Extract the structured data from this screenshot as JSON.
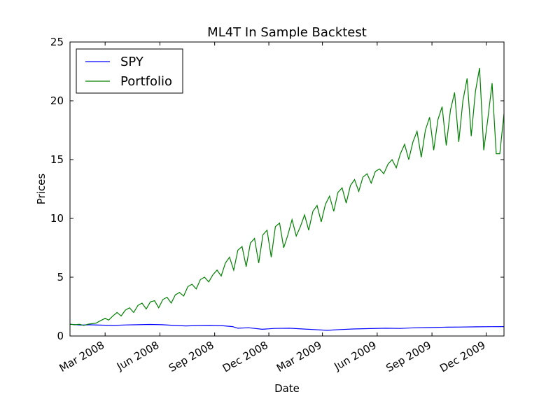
{
  "chart_data": {
    "type": "line",
    "title": "ML4T In Sample Backtest",
    "xlabel": "Date",
    "ylabel": "Prices",
    "ylim": [
      0,
      25
    ],
    "xlim": [
      "2008-01-02",
      "2009-12-31"
    ],
    "yticks": [
      "0",
      "5",
      "10",
      "15",
      "20",
      "25"
    ],
    "xticks": [
      {
        "date": "2008-03-01",
        "label": "Mar 2008"
      },
      {
        "date": "2008-06-01",
        "label": "Jun 2008"
      },
      {
        "date": "2008-09-01",
        "label": "Sep 2008"
      },
      {
        "date": "2008-12-01",
        "label": "Dec 2008"
      },
      {
        "date": "2009-03-01",
        "label": "Mar 2009"
      },
      {
        "date": "2009-06-01",
        "label": "Jun 2009"
      },
      {
        "date": "2009-09-01",
        "label": "Sep 2009"
      },
      {
        "date": "2009-12-01",
        "label": "Dec 2009"
      }
    ],
    "grid": false,
    "legend": "top-left",
    "series": [
      {
        "name": "SPY",
        "color": "#0000ff",
        "points": [
          [
            "2008-01-02",
            1.0
          ],
          [
            "2008-01-20",
            0.93
          ],
          [
            "2008-02-05",
            0.95
          ],
          [
            "2008-02-25",
            0.92
          ],
          [
            "2008-03-15",
            0.9
          ],
          [
            "2008-04-05",
            0.94
          ],
          [
            "2008-04-25",
            0.96
          ],
          [
            "2008-05-15",
            0.98
          ],
          [
            "2008-06-05",
            0.96
          ],
          [
            "2008-06-25",
            0.9
          ],
          [
            "2008-07-15",
            0.86
          ],
          [
            "2008-08-05",
            0.89
          ],
          [
            "2008-08-25",
            0.9
          ],
          [
            "2008-09-15",
            0.87
          ],
          [
            "2008-10-01",
            0.8
          ],
          [
            "2008-10-10",
            0.66
          ],
          [
            "2008-10-28",
            0.7
          ],
          [
            "2008-11-20",
            0.57
          ],
          [
            "2008-12-10",
            0.64
          ],
          [
            "2009-01-05",
            0.66
          ],
          [
            "2009-01-25",
            0.6
          ],
          [
            "2009-02-15",
            0.55
          ],
          [
            "2009-03-09",
            0.48
          ],
          [
            "2009-03-30",
            0.55
          ],
          [
            "2009-04-25",
            0.6
          ],
          [
            "2009-05-20",
            0.63
          ],
          [
            "2009-06-15",
            0.66
          ],
          [
            "2009-07-10",
            0.64
          ],
          [
            "2009-08-05",
            0.7
          ],
          [
            "2009-08-30",
            0.72
          ],
          [
            "2009-09-25",
            0.75
          ],
          [
            "2009-10-20",
            0.76
          ],
          [
            "2009-11-15",
            0.78
          ],
          [
            "2009-12-10",
            0.79
          ],
          [
            "2009-12-31",
            0.8
          ]
        ]
      },
      {
        "name": "Portfolio",
        "color": "#008000",
        "points": [
          [
            "2008-01-02",
            1.0
          ],
          [
            "2008-01-10",
            0.95
          ],
          [
            "2008-01-18",
            1.0
          ],
          [
            "2008-01-25",
            0.9
          ],
          [
            "2008-02-01",
            1.0
          ],
          [
            "2008-02-08",
            1.05
          ],
          [
            "2008-02-15",
            1.1
          ],
          [
            "2008-02-22",
            1.3
          ],
          [
            "2008-03-01",
            1.5
          ],
          [
            "2008-03-07",
            1.35
          ],
          [
            "2008-03-14",
            1.7
          ],
          [
            "2008-03-21",
            2.0
          ],
          [
            "2008-03-28",
            1.7
          ],
          [
            "2008-04-04",
            2.2
          ],
          [
            "2008-04-11",
            2.4
          ],
          [
            "2008-04-18",
            2.0
          ],
          [
            "2008-04-25",
            2.6
          ],
          [
            "2008-05-02",
            2.8
          ],
          [
            "2008-05-09",
            2.3
          ],
          [
            "2008-05-16",
            2.9
          ],
          [
            "2008-05-23",
            3.0
          ],
          [
            "2008-05-30",
            2.4
          ],
          [
            "2008-06-06",
            3.1
          ],
          [
            "2008-06-13",
            3.3
          ],
          [
            "2008-06-20",
            2.8
          ],
          [
            "2008-06-27",
            3.5
          ],
          [
            "2008-07-04",
            3.7
          ],
          [
            "2008-07-11",
            3.4
          ],
          [
            "2008-07-18",
            4.2
          ],
          [
            "2008-07-25",
            4.4
          ],
          [
            "2008-08-01",
            4.0
          ],
          [
            "2008-08-08",
            4.8
          ],
          [
            "2008-08-15",
            5.0
          ],
          [
            "2008-08-22",
            4.6
          ],
          [
            "2008-08-29",
            5.2
          ],
          [
            "2008-09-05",
            5.6
          ],
          [
            "2008-09-12",
            5.1
          ],
          [
            "2008-09-19",
            6.2
          ],
          [
            "2008-09-26",
            6.7
          ],
          [
            "2008-10-03",
            5.6
          ],
          [
            "2008-10-10",
            7.3
          ],
          [
            "2008-10-17",
            7.6
          ],
          [
            "2008-10-24",
            5.9
          ],
          [
            "2008-10-31",
            7.9
          ],
          [
            "2008-11-07",
            8.3
          ],
          [
            "2008-11-14",
            6.2
          ],
          [
            "2008-11-21",
            8.6
          ],
          [
            "2008-11-28",
            9.0
          ],
          [
            "2008-12-05",
            6.7
          ],
          [
            "2008-12-12",
            9.3
          ],
          [
            "2008-12-19",
            9.6
          ],
          [
            "2008-12-26",
            7.5
          ],
          [
            "2009-01-02",
            8.6
          ],
          [
            "2009-01-09",
            9.9
          ],
          [
            "2009-01-16",
            8.5
          ],
          [
            "2009-01-23",
            9.3
          ],
          [
            "2009-01-30",
            10.3
          ],
          [
            "2009-02-06",
            9.0
          ],
          [
            "2009-02-13",
            10.6
          ],
          [
            "2009-02-20",
            11.1
          ],
          [
            "2009-02-27",
            9.7
          ],
          [
            "2009-03-06",
            11.2
          ],
          [
            "2009-03-13",
            11.9
          ],
          [
            "2009-03-20",
            10.6
          ],
          [
            "2009-03-27",
            12.2
          ],
          [
            "2009-04-03",
            12.6
          ],
          [
            "2009-04-10",
            11.3
          ],
          [
            "2009-04-17",
            12.8
          ],
          [
            "2009-04-24",
            13.3
          ],
          [
            "2009-05-01",
            12.3
          ],
          [
            "2009-05-08",
            13.5
          ],
          [
            "2009-05-15",
            13.8
          ],
          [
            "2009-05-22",
            13.0
          ],
          [
            "2009-05-29",
            14.0
          ],
          [
            "2009-06-05",
            14.2
          ],
          [
            "2009-06-12",
            13.8
          ],
          [
            "2009-06-19",
            14.6
          ],
          [
            "2009-06-26",
            15.0
          ],
          [
            "2009-07-03",
            14.3
          ],
          [
            "2009-07-10",
            15.5
          ],
          [
            "2009-07-17",
            16.3
          ],
          [
            "2009-07-24",
            15.0
          ],
          [
            "2009-07-31",
            16.5
          ],
          [
            "2009-08-07",
            17.4
          ],
          [
            "2009-08-14",
            15.2
          ],
          [
            "2009-08-21",
            17.5
          ],
          [
            "2009-08-28",
            18.6
          ],
          [
            "2009-09-04",
            15.8
          ],
          [
            "2009-09-11",
            18.4
          ],
          [
            "2009-09-18",
            19.5
          ],
          [
            "2009-09-25",
            16.2
          ],
          [
            "2009-10-02",
            19.2
          ],
          [
            "2009-10-09",
            20.7
          ],
          [
            "2009-10-16",
            16.5
          ],
          [
            "2009-10-23",
            20.0
          ],
          [
            "2009-10-30",
            21.9
          ],
          [
            "2009-11-06",
            17.0
          ],
          [
            "2009-11-13",
            20.8
          ],
          [
            "2009-11-20",
            22.8
          ],
          [
            "2009-11-27",
            15.8
          ],
          [
            "2009-12-04",
            18.5
          ],
          [
            "2009-12-11",
            21.5
          ],
          [
            "2009-12-18",
            15.5
          ],
          [
            "2009-12-24",
            15.5
          ],
          [
            "2009-12-31",
            18.9
          ]
        ]
      }
    ]
  }
}
